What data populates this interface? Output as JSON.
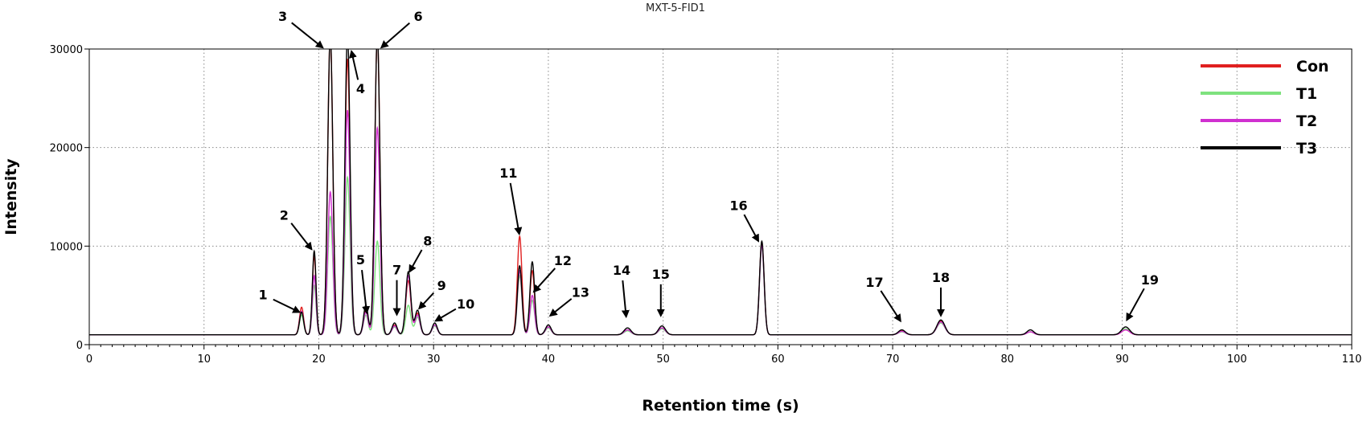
{
  "chart_data": {
    "type": "line",
    "title": "MXT-5-FID1",
    "xlabel": "Retention time (s)",
    "ylabel": "Intensity",
    "xlim": [
      0,
      110
    ],
    "ylim": [
      0,
      30000
    ],
    "x_ticks": [
      0,
      10,
      20,
      30,
      40,
      50,
      60,
      70,
      80,
      90,
      100,
      110
    ],
    "y_ticks": [
      0,
      10000,
      20000,
      30000
    ],
    "grid": true,
    "legend_position": "top-right",
    "baseline": 1000,
    "series": [
      {
        "name": "Con",
        "color": "#e02020",
        "peaks": [
          [
            18.5,
            2800,
            0.18
          ],
          [
            19.6,
            8000,
            0.16
          ],
          [
            21.0,
            30500,
            0.22
          ],
          [
            22.5,
            28000,
            0.22
          ],
          [
            24.1,
            2500,
            0.2
          ],
          [
            25.1,
            30500,
            0.22
          ],
          [
            26.6,
            1000,
            0.22
          ],
          [
            27.8,
            5500,
            0.22
          ],
          [
            28.6,
            2200,
            0.22
          ],
          [
            30.1,
            1000,
            0.22
          ],
          [
            37.5,
            10000,
            0.2
          ],
          [
            38.6,
            6500,
            0.2
          ],
          [
            40.0,
            800,
            0.25
          ],
          [
            46.9,
            500,
            0.3
          ],
          [
            49.9,
            700,
            0.3
          ],
          [
            58.6,
            9400,
            0.2
          ],
          [
            70.8,
            400,
            0.3
          ],
          [
            74.2,
            1400,
            0.35
          ],
          [
            82.0,
            300,
            0.3
          ],
          [
            90.3,
            500,
            0.35
          ]
        ]
      },
      {
        "name": "T1",
        "color": "#7ee27e",
        "peaks": [
          [
            18.5,
            2000,
            0.18
          ],
          [
            19.6,
            5000,
            0.16
          ],
          [
            21.0,
            12000,
            0.22
          ],
          [
            22.5,
            16000,
            0.22
          ],
          [
            24.1,
            2000,
            0.2
          ],
          [
            25.1,
            9500,
            0.22
          ],
          [
            26.6,
            800,
            0.22
          ],
          [
            27.8,
            3000,
            0.22
          ],
          [
            28.6,
            1800,
            0.22
          ],
          [
            30.1,
            900,
            0.22
          ],
          [
            37.5,
            6000,
            0.2
          ],
          [
            38.6,
            3500,
            0.2
          ],
          [
            40.0,
            700,
            0.25
          ],
          [
            46.9,
            400,
            0.3
          ],
          [
            49.9,
            600,
            0.3
          ],
          [
            58.6,
            9000,
            0.2
          ],
          [
            70.8,
            300,
            0.3
          ],
          [
            74.2,
            1200,
            0.35
          ],
          [
            82.0,
            300,
            0.3
          ],
          [
            90.3,
            600,
            0.35
          ]
        ]
      },
      {
        "name": "T2",
        "color": "#d030d0",
        "peaks": [
          [
            18.5,
            2400,
            0.18
          ],
          [
            19.6,
            6000,
            0.16
          ],
          [
            21.0,
            14500,
            0.22
          ],
          [
            22.5,
            22800,
            0.22
          ],
          [
            24.1,
            2300,
            0.2
          ],
          [
            25.1,
            21000,
            0.22
          ],
          [
            26.6,
            900,
            0.22
          ],
          [
            27.8,
            6000,
            0.22
          ],
          [
            28.6,
            2000,
            0.22
          ],
          [
            30.1,
            1000,
            0.22
          ],
          [
            37.5,
            6500,
            0.2
          ],
          [
            38.6,
            4000,
            0.2
          ],
          [
            40.0,
            800,
            0.25
          ],
          [
            46.9,
            500,
            0.3
          ],
          [
            49.9,
            700,
            0.3
          ],
          [
            58.6,
            9100,
            0.2
          ],
          [
            70.8,
            350,
            0.3
          ],
          [
            74.2,
            1300,
            0.35
          ],
          [
            82.0,
            300,
            0.3
          ],
          [
            90.3,
            500,
            0.35
          ]
        ]
      },
      {
        "name": "T3",
        "color": "#000000",
        "peaks": [
          [
            18.5,
            2300,
            0.18
          ],
          [
            19.6,
            8500,
            0.16
          ],
          [
            21.0,
            30500,
            0.22
          ],
          [
            22.5,
            30500,
            0.22
          ],
          [
            24.1,
            3000,
            0.2
          ],
          [
            25.1,
            30500,
            0.22
          ],
          [
            26.6,
            1200,
            0.22
          ],
          [
            27.8,
            6400,
            0.22
          ],
          [
            28.6,
            2500,
            0.22
          ],
          [
            30.1,
            1200,
            0.22
          ],
          [
            37.5,
            7000,
            0.2
          ],
          [
            38.6,
            7400,
            0.2
          ],
          [
            40.0,
            1000,
            0.25
          ],
          [
            46.9,
            700,
            0.3
          ],
          [
            49.9,
            900,
            0.3
          ],
          [
            58.6,
            9500,
            0.2
          ],
          [
            70.8,
            500,
            0.3
          ],
          [
            74.2,
            1500,
            0.35
          ],
          [
            82.0,
            500,
            0.3
          ],
          [
            90.3,
            800,
            0.35
          ]
        ]
      }
    ],
    "annotations": [
      {
        "label": "1",
        "peak_x": 18.5,
        "peak_y": 3200
      },
      {
        "label": "2",
        "peak_x": 19.5,
        "peak_y": 9500
      },
      {
        "label": "3",
        "peak_x": 20.5,
        "peak_y": 30000
      },
      {
        "label": "4",
        "peak_x": 22.8,
        "peak_y": 30000
      },
      {
        "label": "5",
        "peak_x": 24.2,
        "peak_y": 3000
      },
      {
        "label": "6",
        "peak_x": 25.3,
        "peak_y": 30000
      },
      {
        "label": "7",
        "peak_x": 26.8,
        "peak_y": 2800
      },
      {
        "label": "8",
        "peak_x": 27.8,
        "peak_y": 7200
      },
      {
        "label": "9",
        "peak_x": 28.6,
        "peak_y": 3500
      },
      {
        "label": "10",
        "peak_x": 30.0,
        "peak_y": 2300
      },
      {
        "label": "11",
        "peak_x": 37.5,
        "peak_y": 11000
      },
      {
        "label": "12",
        "peak_x": 38.6,
        "peak_y": 5200
      },
      {
        "label": "13",
        "peak_x": 40.0,
        "peak_y": 2800
      },
      {
        "label": "14",
        "peak_x": 46.8,
        "peak_y": 2600
      },
      {
        "label": "15",
        "peak_x": 49.8,
        "peak_y": 2700
      },
      {
        "label": "16",
        "peak_x": 58.4,
        "peak_y": 10300
      },
      {
        "label": "17",
        "peak_x": 70.8,
        "peak_y": 2200
      },
      {
        "label": "18",
        "peak_x": 74.2,
        "peak_y": 2700
      },
      {
        "label": "19",
        "peak_x": 90.3,
        "peak_y": 2300
      }
    ]
  }
}
